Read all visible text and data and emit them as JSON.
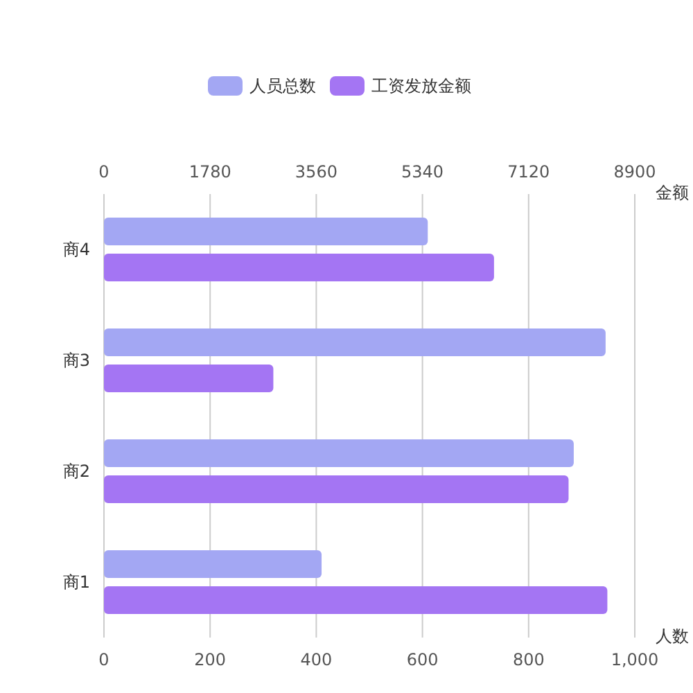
{
  "chart_data": {
    "type": "bar",
    "orientation": "horizontal",
    "legend": "top",
    "grid": "x",
    "categories": [
      "商4",
      "商3",
      "商2",
      "商1"
    ],
    "series": [
      {
        "name": "人员总数",
        "color": "#a3a7f3",
        "values": [
          610,
          945,
          885,
          410
        ]
      },
      {
        "name": "工资发放金额",
        "color": "#a475f3",
        "axis": "x2",
        "values": [
          6540,
          2840,
          7790,
          8440
        ]
      }
    ],
    "xlabel": "人数",
    "x2label": "金额",
    "xlim": [
      0,
      1000
    ],
    "xticks": [
      0,
      200,
      400,
      600,
      800,
      {
        "value": 1000,
        "label": "1,000"
      }
    ],
    "x2lim": [
      0,
      8900
    ],
    "x2ticks": [
      0,
      1780,
      3560,
      5340,
      7120,
      8900
    ]
  }
}
